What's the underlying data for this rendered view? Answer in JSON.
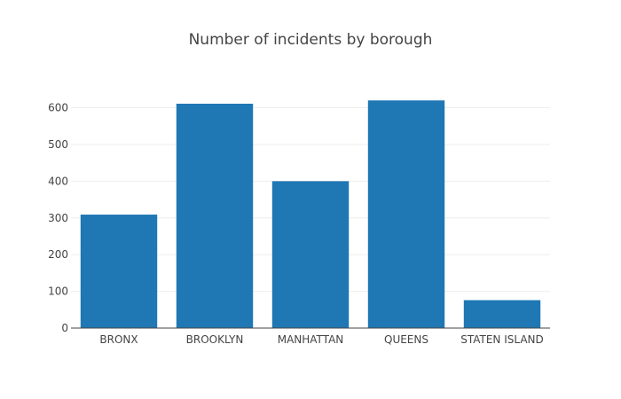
{
  "chart_data": {
    "type": "bar",
    "title": "Number of incidents by borough",
    "xlabel": "",
    "ylabel": "",
    "categories": [
      "BRONX",
      "BROOKLYN",
      "MANHATTAN",
      "QUEENS",
      "STATEN ISLAND"
    ],
    "values": [
      309,
      611,
      400,
      620,
      76
    ],
    "ylim": [
      0,
      652
    ],
    "yticks": [
      0,
      100,
      200,
      300,
      400,
      500,
      600
    ],
    "grid": true,
    "legend": "none",
    "colors": {
      "bar": "#1f77b4",
      "grid": "#eeeeee",
      "axis": "#444444",
      "text": "#444444"
    }
  }
}
